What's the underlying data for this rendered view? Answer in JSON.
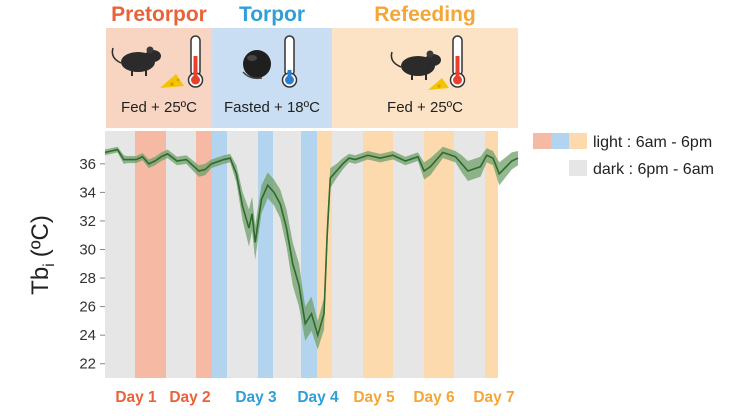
{
  "phases": [
    {
      "key": "pretorpor",
      "title": "Pretorpor",
      "condition": "Fed + 25ºC",
      "color": "#e8633a",
      "bg": "#f6d2c2",
      "thermo": "warm",
      "mouse_icon": "mouse-eating-icon"
    },
    {
      "key": "torpor",
      "title": "Torpor",
      "condition": "Fasted + 18ºC",
      "color": "#2f9fd8",
      "bg": "#c9def2",
      "thermo": "cold",
      "mouse_icon": "curled-mouse-icon"
    },
    {
      "key": "refeeding",
      "title": "Refeeding",
      "condition": "Fed + 25ºC",
      "color": "#f4a637",
      "bg": "#fde3c3",
      "thermo": "warm",
      "mouse_icon": "mouse-eating-icon"
    }
  ],
  "legend": {
    "light_label": "light : 6am - 6pm",
    "dark_label": "dark : 6pm - 6am",
    "light_colors": [
      "#f6b9a3",
      "#b3d4ef",
      "#fdd9ae"
    ],
    "dark_color": "#e6e6e6"
  },
  "chart_data": {
    "type": "line",
    "ylabel": "Tb",
    "ylabel_sub": "i",
    "ylabel_unit": "(ºC)",
    "ylim": [
      21,
      38.3
    ],
    "yticks": [
      22,
      24,
      26,
      28,
      30,
      32,
      34,
      36
    ],
    "day_labels": [
      {
        "label": "Day 1",
        "phase": "pretorpor"
      },
      {
        "label": "Day 2",
        "phase": "pretorpor"
      },
      {
        "label": "Day 3",
        "phase": "torpor"
      },
      {
        "label": "Day 4",
        "phase": "torpor"
      },
      {
        "label": "Day 5",
        "phase": "refeeding"
      },
      {
        "label": "Day 6",
        "phase": "refeeding"
      },
      {
        "label": "Day 7",
        "phase": "refeeding"
      }
    ],
    "light_dark_bands": [
      {
        "period": "dark",
        "phase": "pretorpor"
      },
      {
        "period": "light",
        "phase": "pretorpor"
      },
      {
        "period": "dark",
        "phase": "pretorpor"
      },
      {
        "period": "light",
        "phase": "pretorpor"
      },
      {
        "period": "light",
        "phase": "torpor"
      },
      {
        "period": "dark",
        "phase": "torpor"
      },
      {
        "period": "light",
        "phase": "torpor"
      },
      {
        "period": "dark",
        "phase": "torpor"
      },
      {
        "period": "light",
        "phase": "torpor"
      },
      {
        "period": "light",
        "phase": "refeeding"
      },
      {
        "period": "dark",
        "phase": "refeeding"
      },
      {
        "period": "light",
        "phase": "refeeding"
      },
      {
        "period": "dark",
        "phase": "refeeding"
      },
      {
        "period": "light",
        "phase": "refeeding"
      },
      {
        "period": "dark",
        "phase": "refeeding"
      },
      {
        "period": "light",
        "phase": "refeeding"
      }
    ],
    "series": [
      {
        "color": "#2e6b2e",
        "band_color": "#6f9f6a",
        "points": [
          [
            0,
            36.8,
            0.2
          ],
          [
            0.1,
            36.9,
            0.2
          ],
          [
            0.2,
            37.0,
            0.2
          ],
          [
            0.3,
            36.3,
            0.3
          ],
          [
            0.35,
            36.3,
            0.25
          ],
          [
            0.5,
            36.3,
            0.25
          ],
          [
            0.6,
            36.5,
            0.25
          ],
          [
            0.7,
            36.0,
            0.3
          ],
          [
            0.8,
            36.2,
            0.3
          ],
          [
            0.9,
            36.5,
            0.3
          ],
          [
            1.0,
            36.7,
            0.3
          ],
          [
            1.15,
            36.2,
            0.3
          ],
          [
            1.3,
            36.3,
            0.3
          ],
          [
            1.5,
            35.5,
            0.4
          ],
          [
            1.6,
            35.6,
            0.4
          ],
          [
            1.7,
            36.0,
            0.3
          ],
          [
            1.9,
            36.3,
            0.3
          ],
          [
            2.0,
            36.4,
            0.3
          ],
          [
            2.1,
            35.3,
            0.6
          ],
          [
            2.2,
            33.0,
            1.0
          ],
          [
            2.3,
            31.5,
            1.3
          ],
          [
            2.35,
            32.5,
            1.2
          ],
          [
            2.4,
            30.5,
            1.2
          ],
          [
            2.5,
            33.5,
            1.0
          ],
          [
            2.6,
            34.5,
            0.9
          ],
          [
            2.7,
            34.0,
            0.9
          ],
          [
            2.8,
            33.2,
            1.0
          ],
          [
            2.9,
            31.5,
            1.3
          ],
          [
            3.0,
            29.0,
            1.5
          ],
          [
            3.1,
            27.5,
            1.5
          ],
          [
            3.2,
            24.8,
            1.2
          ],
          [
            3.3,
            25.5,
            1.2
          ],
          [
            3.4,
            24.0,
            1.0
          ],
          [
            3.5,
            25.5,
            1.1
          ],
          [
            3.55,
            31.0,
            1.2
          ],
          [
            3.6,
            35.0,
            0.7
          ],
          [
            3.7,
            35.5,
            0.5
          ],
          [
            3.8,
            36.0,
            0.4
          ],
          [
            3.9,
            36.4,
            0.3
          ],
          [
            4.0,
            36.3,
            0.3
          ],
          [
            4.2,
            36.6,
            0.3
          ],
          [
            4.4,
            36.4,
            0.3
          ],
          [
            4.6,
            36.6,
            0.3
          ],
          [
            4.8,
            36.2,
            0.3
          ],
          [
            5.0,
            36.5,
            0.3
          ],
          [
            5.1,
            35.5,
            0.6
          ],
          [
            5.2,
            35.8,
            0.6
          ],
          [
            5.4,
            36.8,
            0.4
          ],
          [
            5.6,
            36.5,
            0.4
          ],
          [
            5.7,
            36.0,
            0.6
          ],
          [
            5.8,
            35.5,
            0.7
          ],
          [
            6.0,
            35.8,
            0.7
          ],
          [
            6.1,
            36.6,
            0.5
          ],
          [
            6.2,
            36.4,
            0.5
          ],
          [
            6.3,
            35.3,
            0.8
          ],
          [
            6.5,
            36.2,
            0.6
          ],
          [
            6.6,
            36.4,
            0.5
          ]
        ]
      }
    ]
  }
}
